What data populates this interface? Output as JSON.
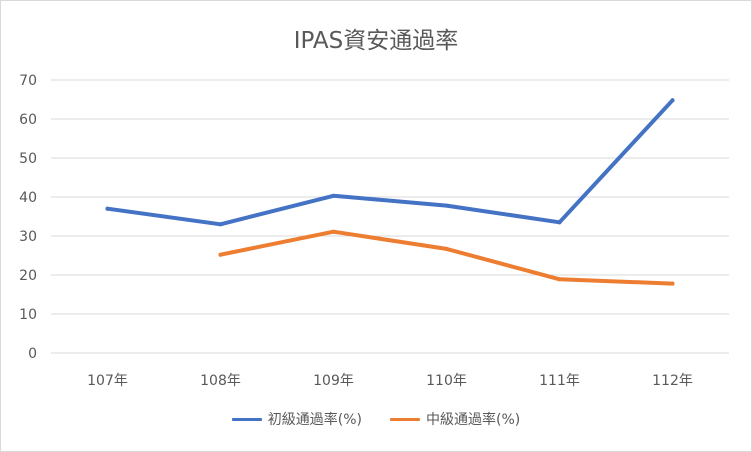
{
  "chart_data": {
    "type": "line",
    "title": "IPAS資安通過率",
    "categories": [
      "107年",
      "108年",
      "109年",
      "110年",
      "111年",
      "112年"
    ],
    "ylim": [
      0,
      70
    ],
    "yticks": [
      0,
      10,
      20,
      30,
      40,
      50,
      60,
      70
    ],
    "grid": true,
    "legend_position": "bottom",
    "series": [
      {
        "name": "初級通過率(%)",
        "color": "#4472c4",
        "values": [
          37.0,
          33.0,
          40.3,
          37.8,
          33.5,
          64.8
        ]
      },
      {
        "name": "中級通過率(%)",
        "color": "#ed7d31",
        "values": [
          null,
          25.2,
          31.1,
          26.7,
          18.9,
          17.8
        ]
      }
    ]
  }
}
